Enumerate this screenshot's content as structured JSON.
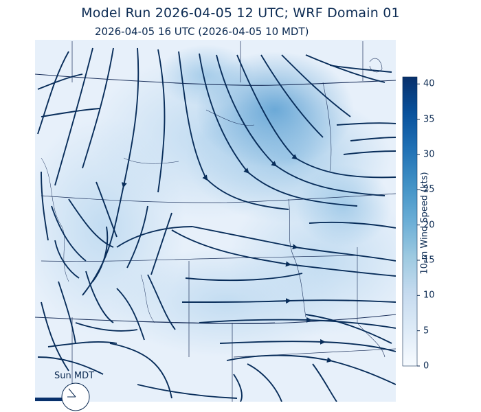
{
  "title": "Model Run 2026-04-05 12 UTC; WRF Domain 01",
  "subtitle": "2026-04-05 16 UTC  (2026-04-05 10 MDT)",
  "colorbar": {
    "label": "10-m Wind Speed (kts)",
    "ticks": [
      "0",
      "5",
      "10",
      "15",
      "20",
      "25",
      "30",
      "35",
      "40"
    ],
    "min": 0,
    "max": 41,
    "colors": [
      "#f7fbff",
      "#deebf7",
      "#c6dbef",
      "#9ecae1",
      "#6baed6",
      "#4292c6",
      "#2171b5",
      "#08519c",
      "#08306b"
    ]
  },
  "day_indicator": {
    "label": "Sun MDT"
  },
  "colors": {
    "streamline": "#082d5a",
    "border": "#1a2f5a",
    "high_wind": "#5e9fd0"
  }
}
